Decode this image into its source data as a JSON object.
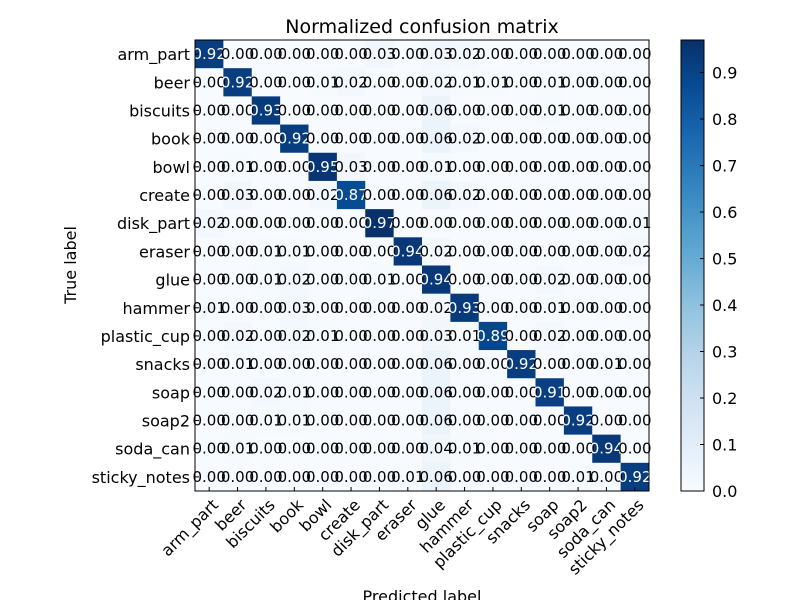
{
  "chart_data": {
    "type": "heatmap",
    "title": "Normalized confusion matrix",
    "xlabel": "Predicted label",
    "ylabel": "True label",
    "categories": [
      "arm_part",
      "beer",
      "biscuits",
      "book",
      "bowl",
      "create",
      "disk_part",
      "eraser",
      "glue",
      "hammer",
      "plastic_cup",
      "snacks",
      "soap",
      "soap2",
      "soda_can",
      "sticky_notes"
    ],
    "values": [
      [
        0.92,
        0.0,
        0.0,
        0.0,
        0.0,
        0.0,
        0.03,
        0.0,
        0.03,
        0.02,
        0.0,
        0.0,
        0.0,
        0.0,
        0.0,
        0.0
      ],
      [
        0.0,
        0.92,
        0.0,
        0.0,
        0.01,
        0.02,
        0.0,
        0.0,
        0.02,
        0.01,
        0.01,
        0.0,
        0.01,
        0.0,
        0.0,
        0.0
      ],
      [
        0.0,
        0.0,
        0.93,
        0.0,
        0.0,
        0.0,
        0.0,
        0.0,
        0.06,
        0.0,
        0.0,
        0.0,
        0.01,
        0.0,
        0.0,
        0.0
      ],
      [
        0.0,
        0.0,
        0.0,
        0.92,
        0.0,
        0.0,
        0.0,
        0.0,
        0.06,
        0.02,
        0.0,
        0.0,
        0.0,
        0.0,
        0.0,
        0.0
      ],
      [
        0.0,
        0.01,
        0.0,
        0.0,
        0.95,
        0.03,
        0.0,
        0.0,
        0.01,
        0.0,
        0.0,
        0.0,
        0.0,
        0.0,
        0.0,
        0.0
      ],
      [
        0.0,
        0.03,
        0.0,
        0.0,
        0.02,
        0.87,
        0.0,
        0.0,
        0.06,
        0.02,
        0.0,
        0.0,
        0.0,
        0.0,
        0.0,
        0.0
      ],
      [
        0.02,
        0.0,
        0.0,
        0.0,
        0.0,
        0.0,
        0.97,
        0.0,
        0.0,
        0.0,
        0.0,
        0.0,
        0.0,
        0.0,
        0.0,
        0.01
      ],
      [
        0.0,
        0.0,
        0.01,
        0.01,
        0.0,
        0.0,
        0.0,
        0.94,
        0.02,
        0.0,
        0.0,
        0.0,
        0.0,
        0.0,
        0.0,
        0.02
      ],
      [
        0.0,
        0.0,
        0.01,
        0.02,
        0.0,
        0.0,
        0.01,
        0.0,
        0.94,
        0.0,
        0.0,
        0.0,
        0.02,
        0.0,
        0.0,
        0.0
      ],
      [
        0.01,
        0.0,
        0.0,
        0.03,
        0.0,
        0.0,
        0.0,
        0.0,
        0.02,
        0.93,
        0.0,
        0.0,
        0.01,
        0.0,
        0.0,
        0.0
      ],
      [
        0.0,
        0.02,
        0.0,
        0.02,
        0.01,
        0.0,
        0.0,
        0.0,
        0.03,
        0.01,
        0.89,
        0.0,
        0.02,
        0.0,
        0.0,
        0.0
      ],
      [
        0.0,
        0.01,
        0.0,
        0.0,
        0.0,
        0.0,
        0.0,
        0.0,
        0.06,
        0.0,
        0.0,
        0.92,
        0.0,
        0.0,
        0.01,
        0.0
      ],
      [
        0.0,
        0.0,
        0.02,
        0.01,
        0.0,
        0.0,
        0.0,
        0.0,
        0.06,
        0.0,
        0.0,
        0.0,
        0.91,
        0.0,
        0.0,
        0.0
      ],
      [
        0.0,
        0.0,
        0.01,
        0.01,
        0.0,
        0.0,
        0.0,
        0.0,
        0.06,
        0.0,
        0.0,
        0.0,
        0.0,
        0.92,
        0.0,
        0.0
      ],
      [
        0.0,
        0.01,
        0.0,
        0.0,
        0.0,
        0.0,
        0.0,
        0.0,
        0.04,
        0.01,
        0.0,
        0.0,
        0.0,
        0.0,
        0.94,
        0.0
      ],
      [
        0.0,
        0.0,
        0.0,
        0.0,
        0.0,
        0.0,
        0.0,
        0.01,
        0.06,
        0.0,
        0.0,
        0.0,
        0.0,
        0.01,
        0.0,
        0.92
      ]
    ],
    "value_labels": [
      [
        "0.92",
        "0.00",
        "0.00",
        "0.00",
        "0.00",
        "0.00",
        "0.03",
        "0.00",
        "0.03",
        "0.02",
        "0.00",
        "0.00",
        "0.00",
        "0.00",
        "0.00",
        "0.00"
      ],
      [
        "0.00",
        "0.92",
        "0.00",
        "0.00",
        "0.01",
        "0.02",
        "0.00",
        "0.00",
        "0.02",
        "0.01",
        "0.01",
        "0.00",
        "0.01",
        "0.00",
        "0.00",
        "0.00"
      ],
      [
        "0.00",
        "0.00",
        "0.93",
        "0.00",
        "0.00",
        "0.00",
        "0.00",
        "0.00",
        "0.06",
        "0.00",
        "0.00",
        "0.00",
        "0.01",
        "0.00",
        "0.00",
        "0.00"
      ],
      [
        "0.00",
        "0.00",
        "0.00",
        "0.92",
        "0.00",
        "0.00",
        "0.00",
        "0.00",
        "0.06",
        "0.02",
        "0.00",
        "0.00",
        "0.00",
        "0.00",
        "0.00",
        "0.00"
      ],
      [
        "0.00",
        "0.01",
        "0.00",
        "0.00",
        "0.95",
        "0.03",
        "0.00",
        "0.00",
        "0.01",
        "0.00",
        "0.00",
        "0.00",
        "0.00",
        "0.00",
        "0.00",
        "0.00"
      ],
      [
        "0.00",
        "0.03",
        "0.00",
        "0.00",
        "0.02",
        "0.87",
        "0.00",
        "0.00",
        "0.06",
        "0.02",
        "0.00",
        "0.00",
        "0.00",
        "0.00",
        "0.00",
        "0.00"
      ],
      [
        "0.02",
        "0.00",
        "0.00",
        "0.00",
        "0.00",
        "0.00",
        "0.97",
        "0.00",
        "0.00",
        "0.00",
        "0.00",
        "0.00",
        "0.00",
        "0.00",
        "0.00",
        "0.01"
      ],
      [
        "0.00",
        "0.00",
        "0.01",
        "0.01",
        "0.00",
        "0.00",
        "0.00",
        "0.94",
        "0.02",
        "0.00",
        "0.00",
        "0.00",
        "0.00",
        "0.00",
        "0.00",
        "0.02"
      ],
      [
        "0.00",
        "0.00",
        "0.01",
        "0.02",
        "0.00",
        "0.00",
        "0.01",
        "0.00",
        "0.94",
        "0.00",
        "0.00",
        "0.00",
        "0.02",
        "0.00",
        "0.00",
        "0.00"
      ],
      [
        "0.01",
        "0.00",
        "0.00",
        "0.03",
        "0.00",
        "0.00",
        "0.00",
        "0.00",
        "0.02",
        "0.93",
        "0.00",
        "0.00",
        "0.01",
        "0.00",
        "0.00",
        "0.00"
      ],
      [
        "0.00",
        "0.02",
        "0.00",
        "0.02",
        "0.01",
        "0.00",
        "0.00",
        "0.00",
        "0.03",
        "0.01",
        "0.89",
        "0.00",
        "0.02",
        "0.00",
        "0.00",
        "0.00"
      ],
      [
        "0.00",
        "0.01",
        "0.00",
        "0.00",
        "0.00",
        "0.00",
        "0.00",
        "0.00",
        "0.06",
        "0.00",
        "0.00",
        "0.92",
        "0.00",
        "0.00",
        "0.01",
        "0.00"
      ],
      [
        "0.00",
        "0.00",
        "0.02",
        "0.01",
        "0.00",
        "0.00",
        "0.00",
        "0.00",
        "0.06",
        "0.00",
        "0.00",
        "0.00",
        "0.91",
        "0.00",
        "0.00",
        "0.00"
      ],
      [
        "0.00",
        "0.00",
        "0.01",
        "0.01",
        "0.00",
        "0.00",
        "0.00",
        "0.00",
        "0.06",
        "0.00",
        "0.00",
        "0.00",
        "0.00",
        "0.92",
        "0.00",
        "0.00"
      ],
      [
        "0.00",
        "0.01",
        "0.00",
        "0.00",
        "0.00",
        "0.00",
        "0.00",
        "0.00",
        "0.04",
        "0.01",
        "0.00",
        "0.00",
        "0.00",
        "0.00",
        "0.94",
        "0.00"
      ],
      [
        "0.00",
        "0.00",
        "0.00",
        "0.00",
        "0.00",
        "0.00",
        "0.00",
        "0.01",
        "0.06",
        "0.00",
        "0.00",
        "0.00",
        "0.00",
        "0.01",
        "0.00",
        "0.92"
      ]
    ],
    "colorbar": {
      "colormap": "Blues",
      "range": [
        0.0,
        0.97
      ],
      "ticks": [
        0.0,
        0.1,
        0.2,
        0.3,
        0.4,
        0.5,
        0.6,
        0.7,
        0.8,
        0.9
      ],
      "tick_labels": [
        "0.0",
        "0.1",
        "0.2",
        "0.3",
        "0.4",
        "0.5",
        "0.6",
        "0.7",
        "0.8",
        "0.9"
      ]
    },
    "colors": {
      "low": "#f7fbff",
      "high": "#08306b",
      "text_dark_cell": "#ffffff",
      "text_light_cell": "#000000"
    },
    "grid": false,
    "x_tick_rotation_deg": 45
  }
}
